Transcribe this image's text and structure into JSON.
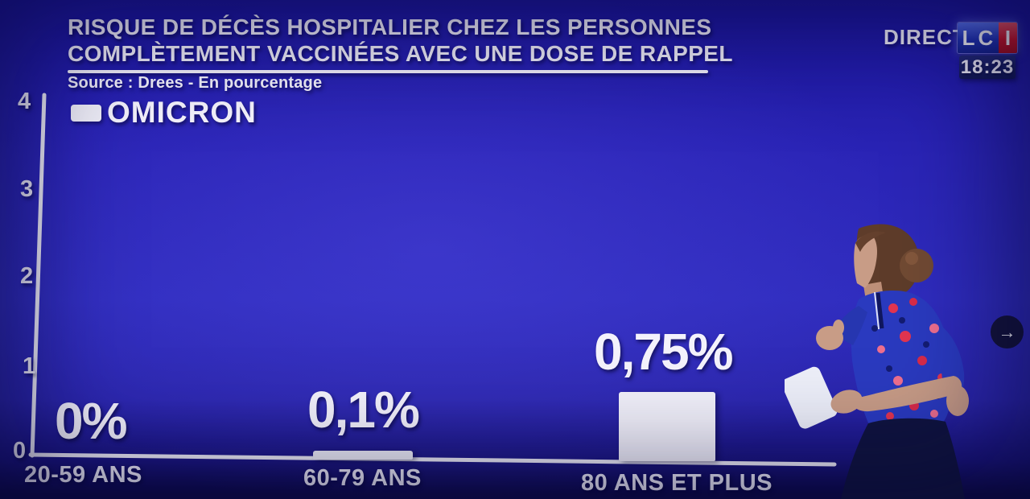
{
  "broadcast": {
    "live_label": "DIRECT",
    "channel_blue_letters": "LC",
    "channel_red_letter": "I",
    "time": "18:23"
  },
  "overlay": {
    "next_button_glyph": "→"
  },
  "chart_data": {
    "type": "bar",
    "title_line1": "RISQUE DE DÉCÈS HOSPITALIER CHEZ LES PERSONNES",
    "title_line2": "COMPLÈTEMENT VACCINÉES AVEC UNE DOSE DE RAPPEL",
    "source": "Source : Drees - En pourcentage",
    "categories": [
      "20-59 ANS",
      "60-79 ANS",
      "80 ANS ET PLUS"
    ],
    "series": [
      {
        "name": "OMICRON",
        "values": [
          0,
          0.1,
          0.75
        ]
      }
    ],
    "value_labels": [
      "0%",
      "0,1%",
      "0,75%"
    ],
    "yticks_top_to_bottom": [
      "4",
      "3",
      "2",
      "1",
      "0"
    ],
    "ylim": [
      0,
      4
    ],
    "unit": "percent",
    "bar_color": "#f2f1fa",
    "background_color": "#2a24b6",
    "legend_position": "top-left",
    "grid": false
  }
}
